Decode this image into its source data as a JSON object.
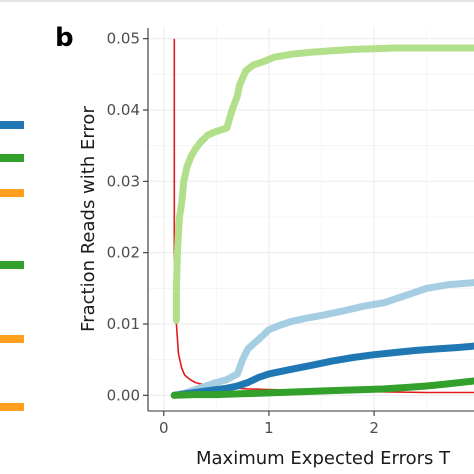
{
  "panel_label": "b",
  "chart_data": {
    "type": "line",
    "title": "",
    "xlabel": "Maximum Expected Errors T",
    "ylabel": "Fraction Reads with Error",
    "xlim": [
      -0.15,
      2.95
    ],
    "ylim": [
      -0.0022,
      0.0515
    ],
    "x_ticks": [
      0,
      1,
      2
    ],
    "y_ticks": [
      0.0,
      0.01,
      0.02,
      0.03,
      0.04,
      0.05
    ],
    "x_tick_labels": [
      "0",
      "1",
      "2"
    ],
    "y_tick_labels": [
      "0.00",
      "0.01",
      "0.02",
      "0.03",
      "0.04",
      "0.05"
    ],
    "grid": true,
    "series": [
      {
        "color": "#e31a1c",
        "width": 1.6,
        "x": [
          0.1,
          0.1,
          0.12,
          0.14,
          0.17,
          0.2,
          0.25,
          0.3,
          0.35,
          0.45,
          0.6,
          0.8,
          1.0,
          1.3,
          1.6,
          2.0,
          2.5,
          2.95
        ],
        "y": [
          0.0499,
          0.02,
          0.01,
          0.0058,
          0.0038,
          0.0028,
          0.0022,
          0.0018,
          0.0016,
          0.0013,
          0.0011,
          0.0009,
          0.0008,
          0.0007,
          0.0006,
          0.0005,
          0.0004,
          0.0004
        ]
      },
      {
        "color": "#b2df8a",
        "width": 7,
        "x": [
          0.12,
          0.12,
          0.13,
          0.14,
          0.15,
          0.17,
          0.19,
          0.22,
          0.26,
          0.3,
          0.35,
          0.42,
          0.5,
          0.6,
          0.65,
          0.7,
          0.72,
          0.78,
          0.85,
          0.95,
          1.05,
          1.2,
          1.4,
          1.6,
          1.8,
          2.0,
          2.2,
          2.5,
          2.8,
          2.95
        ],
        "y": [
          0.0105,
          0.015,
          0.02,
          0.023,
          0.025,
          0.027,
          0.03,
          0.032,
          0.0335,
          0.0345,
          0.0355,
          0.0365,
          0.037,
          0.0375,
          0.04,
          0.042,
          0.0435,
          0.0455,
          0.0463,
          0.0468,
          0.0474,
          0.0478,
          0.0481,
          0.0483,
          0.0485,
          0.0486,
          0.0487,
          0.0487,
          0.0487,
          0.0487
        ]
      },
      {
        "color": "#a6cee3",
        "width": 7,
        "x": [
          0.1,
          0.2,
          0.3,
          0.4,
          0.5,
          0.6,
          0.7,
          0.75,
          0.8,
          0.85,
          0.9,
          0.95,
          1.0,
          1.1,
          1.2,
          1.35,
          1.5,
          1.7,
          1.9,
          2.1,
          2.3,
          2.5,
          2.7,
          2.95
        ],
        "y": [
          0.0,
          0.0003,
          0.0008,
          0.0013,
          0.0018,
          0.0022,
          0.003,
          0.005,
          0.0065,
          0.0072,
          0.0078,
          0.0085,
          0.0092,
          0.0098,
          0.0103,
          0.0108,
          0.0112,
          0.0118,
          0.0125,
          0.013,
          0.014,
          0.015,
          0.0155,
          0.0158
        ]
      },
      {
        "color": "#1f78b4",
        "width": 7,
        "x": [
          0.1,
          0.2,
          0.3,
          0.4,
          0.5,
          0.6,
          0.7,
          0.8,
          0.9,
          1.0,
          1.2,
          1.4,
          1.6,
          1.8,
          2.0,
          2.2,
          2.4,
          2.6,
          2.8,
          2.95
        ],
        "y": [
          0.0,
          0.0002,
          0.0004,
          0.0006,
          0.0008,
          0.001,
          0.0013,
          0.0018,
          0.0025,
          0.003,
          0.0036,
          0.0042,
          0.0048,
          0.0053,
          0.0057,
          0.006,
          0.0063,
          0.0065,
          0.0067,
          0.0069
        ]
      },
      {
        "color": "#33a02c",
        "width": 7,
        "x": [
          0.1,
          0.3,
          0.5,
          0.7,
          0.9,
          1.1,
          1.3,
          1.5,
          1.7,
          1.9,
          2.1,
          2.3,
          2.5,
          2.7,
          2.95
        ],
        "y": [
          0.0,
          0.0001,
          0.0001,
          0.0002,
          0.0003,
          0.0004,
          0.0005,
          0.0006,
          0.0007,
          0.0008,
          0.0009,
          0.0011,
          0.0013,
          0.0016,
          0.002
        ]
      }
    ]
  },
  "left_legend_keys": [
    {
      "color": "#1f78b4"
    },
    {
      "color": "#33a02c"
    },
    {
      "color": "#ff9f1c"
    },
    {
      "color": "#33a02c"
    },
    {
      "color": "#ff9f1c"
    },
    {
      "color": "#ff9f1c"
    }
  ]
}
